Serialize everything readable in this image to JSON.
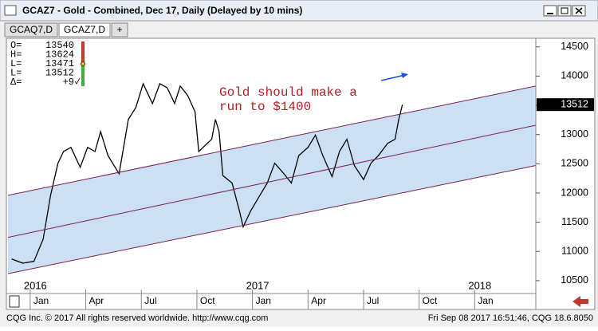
{
  "window": {
    "title": "GCAZ7 - Gold - Combined, Dec 17, Daily (Delayed by 10 mins)",
    "tabs": [
      "GCAQ7,D",
      "GCAZ7,D",
      "+"
    ],
    "footer_left": "CQG Inc. © 2017 All rights reserved worldwide. http://www.cqg.com",
    "footer_right": "Fri Sep 08 2017 16:51:46, CQG 18.6.8050"
  },
  "quote": {
    "labels": [
      "O=",
      "H=",
      "L=",
      "L=",
      "Δ="
    ],
    "values": [
      "13540",
      "13624",
      "13471",
      "13512",
      "+9"
    ]
  },
  "chart_data": {
    "type": "line",
    "annotation": [
      "Gold should make a",
      "run to $1400"
    ],
    "annotation_color": "#b22222",
    "xlim": [
      -1.2,
      27.3
    ],
    "ylim": [
      10280,
      14620
    ],
    "xticks": [
      {
        "value": 0,
        "label": "Jan"
      },
      {
        "value": 3,
        "label": "Apr"
      },
      {
        "value": 6,
        "label": "Jul"
      },
      {
        "value": 9,
        "label": "Oct"
      },
      {
        "value": 12,
        "label": "Jan"
      },
      {
        "value": 15,
        "label": "Apr"
      },
      {
        "value": 18,
        "label": "Jul"
      },
      {
        "value": 21,
        "label": "Oct"
      },
      {
        "value": 24,
        "label": "Jan"
      }
    ],
    "year_ticks": [
      {
        "value": 0,
        "label": "2016"
      },
      {
        "value": 12,
        "label": "2017"
      },
      {
        "value": 24,
        "label": "2018"
      }
    ],
    "yticks": [
      10500,
      11000,
      11500,
      12000,
      12500,
      13000,
      13500,
      14000,
      14500
    ],
    "band_color": "#cce0f5",
    "series": [
      {
        "color": "#000000",
        "x": [
          -1.0,
          -0.4,
          0.2,
          0.7,
          1.1,
          1.5,
          1.8,
          2.2,
          2.7,
          3.1,
          3.5,
          3.8,
          4.2,
          4.8,
          5.3,
          5.7,
          6.1,
          6.6,
          7.0,
          7.4,
          7.8,
          8.1,
          8.5,
          8.9,
          9.1,
          9.8,
          10.0,
          10.2,
          10.4,
          10.9,
          11.3,
          11.5,
          11.9,
          12.4,
          12.8,
          13.2,
          13.7,
          14.1,
          14.5,
          15.0,
          15.4,
          15.8,
          16.3,
          16.7,
          17.1,
          17.5,
          18.0,
          18.4,
          18.8,
          19.3,
          19.7,
          19.9,
          20.1
        ],
        "values": [
          10870,
          10800,
          10830,
          11210,
          11960,
          12510,
          12710,
          12780,
          12440,
          12780,
          12710,
          13050,
          12640,
          12330,
          13260,
          13460,
          13870,
          13530,
          13870,
          13800,
          13530,
          13830,
          13670,
          13390,
          12710,
          12920,
          13260,
          13050,
          12300,
          12170,
          11690,
          11420,
          11690,
          11960,
          12170,
          12510,
          12330,
          12170,
          12640,
          12780,
          12990,
          12640,
          12280,
          12710,
          12920,
          12470,
          12230,
          12510,
          12640,
          12850,
          12920,
          13260,
          13512
        ]
      },
      {
        "color": "#7a2048",
        "x": [
          -1.2,
          27.3
        ],
        "values": [
          11960,
          13830
        ]
      },
      {
        "color": "#7a2048",
        "x": [
          -1.2,
          27.3
        ],
        "values": [
          11240,
          13160
        ]
      },
      {
        "color": "#7a2048",
        "x": [
          -1.2,
          27.3
        ],
        "values": [
          10620,
          12470
        ]
      }
    ]
  }
}
